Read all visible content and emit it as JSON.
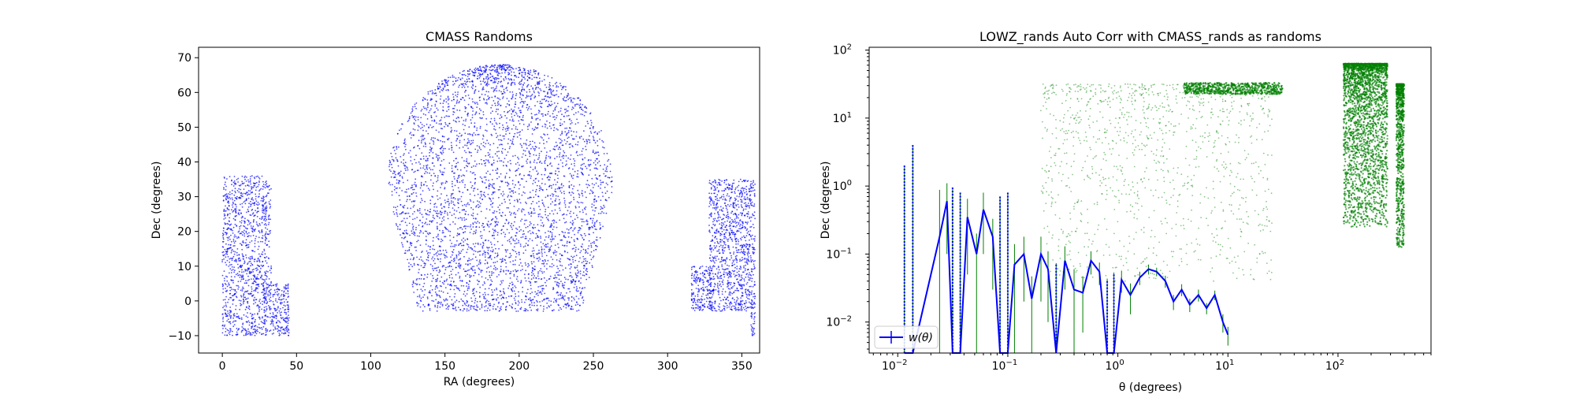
{
  "chart_data": [
    {
      "type": "scatter",
      "title": "CMASS Randoms",
      "xlabel": "RA (degrees)",
      "ylabel": "Dec (degrees)",
      "xlim": [
        -16,
        362
      ],
      "ylim": [
        -15,
        73
      ],
      "xticks": [
        0,
        50,
        100,
        150,
        200,
        250,
        300,
        350
      ],
      "yticks": [
        -10,
        0,
        10,
        20,
        30,
        40,
        50,
        60,
        70
      ],
      "grid": false,
      "legend": null,
      "colors": {
        "points": "#0000ff"
      },
      "series": [
        {
          "regions": [
            {
              "shape": "rect",
              "ra": [
                0,
                30
              ],
              "dec": [
                -10,
                36
              ],
              "count": 1100
            },
            {
              "shape": "rect",
              "ra": [
                28,
                45
              ],
              "dec": [
                -10,
                5
              ],
              "count": 260
            },
            {
              "shape": "rect",
              "ra": [
                29,
                33
              ],
              "dec": [
                5,
                34
              ],
              "count": 60
            },
            {
              "shape": "blob",
              "ra_center": 187,
              "dec_center": 32,
              "ra_halfwidth": 76,
              "dec_top": 68,
              "dec_bottom": -3,
              "count": 4200
            },
            {
              "shape": "rect",
              "ra": [
                328,
                359
              ],
              "dec": [
                -3,
                35
              ],
              "count": 1100
            },
            {
              "shape": "rect",
              "ra": [
                316,
                330
              ],
              "dec": [
                -3,
                10
              ],
              "count": 200
            },
            {
              "shape": "rect",
              "ra": [
                356,
                359
              ],
              "dec": [
                -10,
                -3
              ],
              "count": 30
            }
          ]
        }
      ]
    },
    {
      "type": "line",
      "title": "LOWZ_rands Auto Corr with CMASS_rands as randoms",
      "xlabel": "θ (degrees)",
      "ylabel": "Dec (degrees)",
      "xscale": "log",
      "yscale": "log",
      "xlim": [
        0.0055,
        700
      ],
      "ylim": [
        0.0035,
        110
      ],
      "xtick_exponents": [
        -2,
        -1,
        0,
        1,
        2
      ],
      "ytick_exponents": [
        -2,
        -1,
        0,
        1,
        2
      ],
      "grid": false,
      "legend": {
        "placement": "lower-left",
        "entries": [
          "w(θ)"
        ]
      },
      "colors": {
        "line": "#0000ff",
        "errorbars": "#008000",
        "scatter": "#008000"
      },
      "series": [
        {
          "name": "w(θ)",
          "theta": [
            0.0115,
            0.0137,
            0.024,
            0.028,
            0.0315,
            0.037,
            0.043,
            0.052,
            0.06,
            0.073,
            0.085,
            0.1,
            0.115,
            0.14,
            0.165,
            0.2,
            0.232,
            0.275,
            0.33,
            0.4,
            0.48,
            0.57,
            0.68,
            0.8,
            0.92,
            1.08,
            1.3,
            1.58,
            1.9,
            2.25,
            2.7,
            3.2,
            3.8,
            4.5,
            5.4,
            6.4,
            7.6,
            9.0,
            10.0
          ],
          "w": [
            0.0035,
            0.0035,
            0.18,
            0.6,
            0.0035,
            0.0035,
            0.35,
            0.1,
            0.45,
            0.18,
            0.0035,
            0.0035,
            0.07,
            0.1,
            0.022,
            0.1,
            0.06,
            0.0035,
            0.08,
            0.03,
            0.027,
            0.08,
            0.055,
            0.0035,
            0.0035,
            0.042,
            0.025,
            0.045,
            0.06,
            0.055,
            0.04,
            0.02,
            0.03,
            0.018,
            0.025,
            0.016,
            0.025,
            0.01,
            0.0065
          ],
          "w_err": [
            2.0,
            4.0,
            0.7,
            0.5,
            0.95,
            0.8,
            0.3,
            0.1,
            0.35,
            0.15,
            0.7,
            0.8,
            0.07,
            0.08,
            0.025,
            0.08,
            0.05,
            0.07,
            0.05,
            0.03,
            0.02,
            0.03,
            0.02,
            0.04,
            0.05,
            0.015,
            0.012,
            0.01,
            0.01,
            0.008,
            0.008,
            0.005,
            0.006,
            0.004,
            0.005,
            0.003,
            0.004,
            0.003,
            0.002
          ]
        },
        {
          "name": "",
          "type": "scatter",
          "regions": [
            {
              "shape": "sparse",
              "x_log": [
                -0.7,
                1.4
              ],
              "y_log": [
                -1.4,
                1.5
              ],
              "count": 1200
            },
            {
              "shape": "band",
              "x_log": [
                0.6,
                1.5
              ],
              "y_log": [
                1.35,
                1.52
              ],
              "count": 700
            },
            {
              "shape": "column",
              "x_log": [
                2.05,
                2.45
              ],
              "y_log": [
                -0.6,
                1.8
              ],
              "count": 2500
            },
            {
              "shape": "column",
              "x_log": [
                2.53,
                2.6
              ],
              "y_log": [
                -0.9,
                1.5
              ],
              "count": 900
            }
          ]
        }
      ]
    }
  ]
}
